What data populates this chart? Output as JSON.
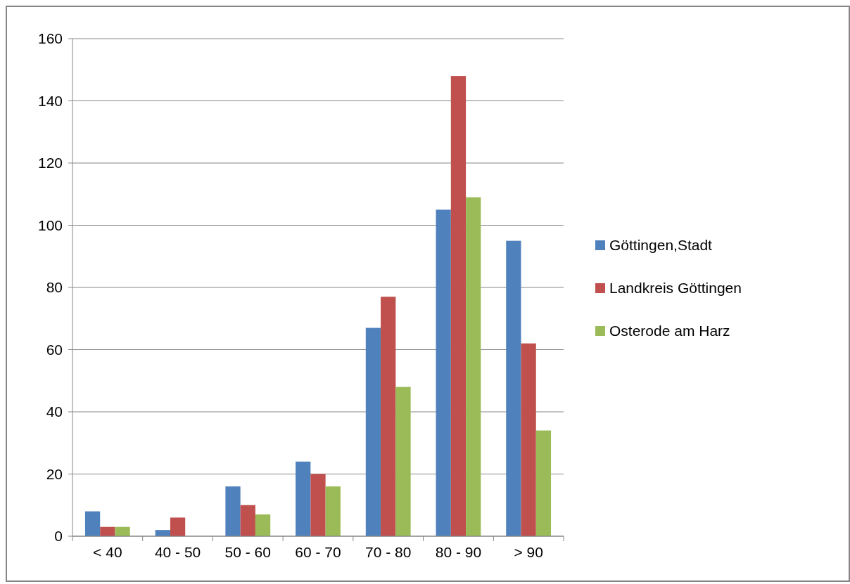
{
  "chart_data": {
    "type": "bar",
    "categories": [
      "< 40",
      "40 - 50",
      "50 - 60",
      "60 - 70",
      "70 - 80",
      "80 - 90",
      "> 90"
    ],
    "series": [
      {
        "name": "Göttingen,Stadt",
        "color": "#4f81bd",
        "values": [
          8,
          2,
          16,
          24,
          67,
          105,
          95
        ]
      },
      {
        "name": "Landkreis Göttingen",
        "color": "#c0504d",
        "values": [
          3,
          6,
          10,
          20,
          77,
          148,
          62
        ]
      },
      {
        "name": "Osterode am Harz",
        "color": "#9bbb59",
        "values": [
          3,
          0,
          7,
          16,
          48,
          109,
          34
        ]
      }
    ],
    "ylim": [
      0,
      160
    ],
    "yticks": [
      0,
      20,
      40,
      60,
      80,
      100,
      120,
      140,
      160
    ],
    "grid": "y",
    "legend": "right"
  }
}
